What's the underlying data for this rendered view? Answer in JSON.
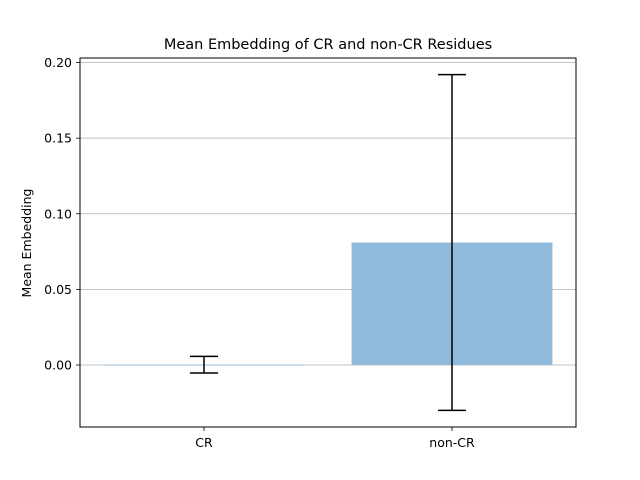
{
  "chart_data": {
    "type": "bar",
    "title": "Mean Embedding of CR and non-CR Residues",
    "xlabel": "",
    "ylabel": "Mean Embedding",
    "categories": [
      "CR",
      "non-CR"
    ],
    "values": [
      0.0002,
      0.081
    ],
    "error": [
      0.0055,
      0.111
    ],
    "ylim": [
      -0.041,
      0.203
    ],
    "yticks": [
      0.0,
      0.05,
      0.1,
      0.15,
      0.2
    ],
    "ytick_labels": [
      "0.00",
      "0.05",
      "0.10",
      "0.15",
      "0.20"
    ],
    "grid": "y",
    "bar_color": "#8fbadb",
    "errorbar_color": "#000000",
    "grid_color": "#b0b0b0"
  }
}
